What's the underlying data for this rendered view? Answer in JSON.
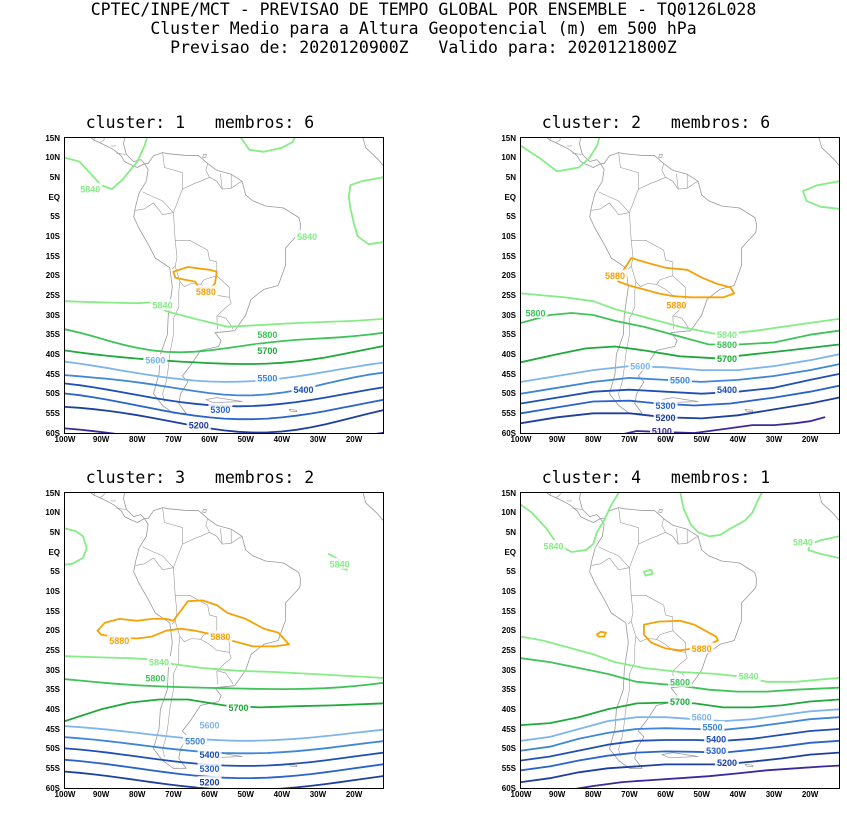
{
  "header": {
    "line1": "CPTEC/INPE/MCT - PREVISAO DE TEMPO GLOBAL POR ENSEMBLE - TQ0126L028",
    "line2": "Cluster Medio para a Altura Geopotencial (m) em 500 hPa",
    "line3": "Previsao de: 2020120900Z   Valido para: 2020121800Z"
  },
  "axes": {
    "lat_labels": [
      "15N",
      "10N",
      "5N",
      "EQ",
      "5S",
      "10S",
      "15S",
      "20S",
      "25S",
      "30S",
      "35S",
      "40S",
      "45S",
      "50S",
      "55S",
      "60S"
    ],
    "lon_labels": [
      "100W",
      "90W",
      "80W",
      "70W",
      "60W",
      "50W",
      "40W",
      "30W",
      "20W"
    ]
  },
  "colors": {
    "c5100": "#3b2a9f",
    "c5200": "#1e3fa0",
    "c5300": "#2a63c9",
    "c5400": "#1f4fb5",
    "c5500": "#3f86d8",
    "c5600": "#7fb5ec",
    "c5700": "#1fa83c",
    "c5800": "#3fc25a",
    "c5840": "#86ec86",
    "c5880": "#f5a20a",
    "coast": "#999999"
  },
  "panels": [
    {
      "title": "cluster: 1   membros: 6",
      "labels": [
        {
          "t": "5840",
          "lon": -93,
          "lat": 2,
          "k": "c5840"
        },
        {
          "t": "5840",
          "lon": -33,
          "lat": -10,
          "k": "c5840"
        },
        {
          "t": "5880",
          "lon": -61,
          "lat": -24,
          "k": "c5880"
        },
        {
          "t": "5840",
          "lon": -73,
          "lat": -27.5,
          "k": "c5840"
        },
        {
          "t": "5800",
          "lon": -44,
          "lat": -35,
          "k": "c5800"
        },
        {
          "t": "5700",
          "lon": -44,
          "lat": -39,
          "k": "c5700"
        },
        {
          "t": "5600",
          "lon": -75,
          "lat": -41.5,
          "k": "c5600"
        },
        {
          "t": "5500",
          "lon": -44,
          "lat": -46,
          "k": "c5500"
        },
        {
          "t": "5400",
          "lon": -34,
          "lat": -49,
          "k": "c5400"
        },
        {
          "t": "5300",
          "lon": -57,
          "lat": -54,
          "k": "c5300"
        },
        {
          "t": "5200",
          "lon": -63,
          "lat": -58,
          "k": "c5200"
        }
      ]
    },
    {
      "title": "cluster: 2   membros: 6",
      "labels": [
        {
          "t": "5880",
          "lon": -74,
          "lat": -20,
          "k": "c5880"
        },
        {
          "t": "5880",
          "lon": -57,
          "lat": -27.5,
          "k": "c5880"
        },
        {
          "t": "5800",
          "lon": -96,
          "lat": -29.5,
          "k": "c5800"
        },
        {
          "t": "5840",
          "lon": -43,
          "lat": -35,
          "k": "c5840"
        },
        {
          "t": "5800",
          "lon": -43,
          "lat": -37.5,
          "k": "c5800"
        },
        {
          "t": "5700",
          "lon": -43,
          "lat": -41,
          "k": "c5700"
        },
        {
          "t": "5600",
          "lon": -67,
          "lat": -43,
          "k": "c5600"
        },
        {
          "t": "5500",
          "lon": -56,
          "lat": -46.5,
          "k": "c5500"
        },
        {
          "t": "5400",
          "lon": -43,
          "lat": -49,
          "k": "c5400"
        },
        {
          "t": "5300",
          "lon": -60,
          "lat": -53,
          "k": "c5300"
        },
        {
          "t": "5200",
          "lon": -60,
          "lat": -56,
          "k": "c5200"
        },
        {
          "t": "5100",
          "lon": -61,
          "lat": -59.5,
          "k": "c5100"
        }
      ]
    },
    {
      "title": "cluster: 3   membros: 2",
      "labels": [
        {
          "t": "5840",
          "lon": -24,
          "lat": -3,
          "k": "c5840"
        },
        {
          "t": "5880",
          "lon": -57,
          "lat": -21.5,
          "k": "c5880"
        },
        {
          "t": "5880",
          "lon": -85,
          "lat": -22.5,
          "k": "c5880"
        },
        {
          "t": "5840",
          "lon": -74,
          "lat": -28,
          "k": "c5840"
        },
        {
          "t": "5800",
          "lon": -75,
          "lat": -32,
          "k": "c5800"
        },
        {
          "t": "5700",
          "lon": -52,
          "lat": -39.5,
          "k": "c5700"
        },
        {
          "t": "5600",
          "lon": -60,
          "lat": -44,
          "k": "c5600"
        },
        {
          "t": "5500",
          "lon": -64,
          "lat": -48,
          "k": "c5500"
        },
        {
          "t": "5400",
          "lon": -60,
          "lat": -51.5,
          "k": "c5400"
        },
        {
          "t": "5300",
          "lon": -60,
          "lat": -55,
          "k": "c5300"
        },
        {
          "t": "5200",
          "lon": -60,
          "lat": -58.5,
          "k": "c5200"
        }
      ]
    },
    {
      "title": "cluster: 4   membros: 1",
      "labels": [
        {
          "t": "5840",
          "lon": -91,
          "lat": 1.5,
          "k": "c5840"
        },
        {
          "t": "5840",
          "lon": -22,
          "lat": 2.5,
          "k": "c5840"
        },
        {
          "t": "5880",
          "lon": -50,
          "lat": -24.5,
          "k": "c5880"
        },
        {
          "t": "5840",
          "lon": -37,
          "lat": -31.5,
          "k": "c5840"
        },
        {
          "t": "5800",
          "lon": -56,
          "lat": -33,
          "k": "c5800"
        },
        {
          "t": "5700",
          "lon": -56,
          "lat": -38,
          "k": "c5700"
        },
        {
          "t": "5600",
          "lon": -50,
          "lat": -42,
          "k": "c5600"
        },
        {
          "t": "5500",
          "lon": -47,
          "lat": -44.5,
          "k": "c5500"
        },
        {
          "t": "5400",
          "lon": -46,
          "lat": -47.5,
          "k": "c5400"
        },
        {
          "t": "5300",
          "lon": -46,
          "lat": -50.5,
          "k": "c5300"
        },
        {
          "t": "5200",
          "lon": -43,
          "lat": -53.5,
          "k": "c5200"
        }
      ]
    }
  ]
}
